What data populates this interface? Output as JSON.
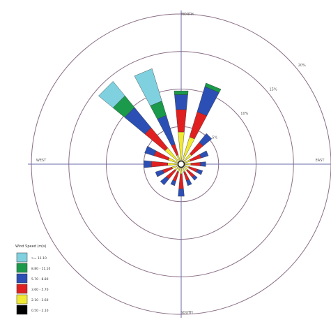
{
  "chart_data": {
    "type": "wind-rose",
    "title": "",
    "direction_labels": {
      "north": "NORTH",
      "south": "SOUTH",
      "east": "EAST",
      "west": "WEST"
    },
    "radial_scale": {
      "unit": "%",
      "rings": [
        5,
        10,
        15,
        20
      ],
      "ring_labels": [
        "5%",
        "10%",
        "15%",
        "20%"
      ],
      "max": 20
    },
    "legend": {
      "title": "Wind Speed (m/s)",
      "placement": "bottom-left",
      "classes": [
        {
          "label": ">= 11.10",
          "color": "#7fd1df"
        },
        {
          "label": "8.80 - 11.10",
          "color": "#1a9a4a"
        },
        {
          "label": "5.70 - 8.80",
          "color": "#2b4fb5"
        },
        {
          "label": "3.60 - 5.70",
          "color": "#e02020"
        },
        {
          "label": "2.10 - 3.60",
          "color": "#f2ea32"
        },
        {
          "label": "0.50 - 2.10",
          "color": "#000000"
        }
      ]
    },
    "directions_deg": [
      0,
      22.5,
      45,
      67.5,
      90,
      112.5,
      135,
      157.5,
      180,
      202.5,
      225,
      247.5,
      270,
      292.5,
      315,
      337.5
    ],
    "series": [
      {
        "name": "0.50 - 2.10",
        "values": [
          0.3,
          0.3,
          0.3,
          0.3,
          0.3,
          0.3,
          0.3,
          0.3,
          0.3,
          0.3,
          0.3,
          0.3,
          0.3,
          0.3,
          0.3,
          0.3
        ]
      },
      {
        "name": "2.10 - 3.60",
        "values": [
          4.0,
          3.5,
          1.5,
          1.0,
          1.0,
          0.8,
          0.8,
          0.8,
          1.0,
          0.8,
          0.8,
          1.0,
          1.5,
          1.5,
          2.5,
          1.0
        ]
      },
      {
        "name": "3.60 - 5.70",
        "values": [
          3.0,
          3.5,
          2.0,
          1.5,
          1.3,
          1.2,
          1.2,
          1.2,
          2.0,
          1.3,
          1.5,
          1.3,
          2.2,
          2.0,
          3.5,
          1.5
        ]
      },
      {
        "name": "5.70 - 8.80",
        "values": [
          2.0,
          3.5,
          1.5,
          1.0,
          0.7,
          0.7,
          0.5,
          0.7,
          1.0,
          0.6,
          1.0,
          1.0,
          1.0,
          1.3,
          3.5,
          4.0
        ]
      },
      {
        "name": "8.80 - 11.10",
        "values": [
          0.5,
          0.5,
          0.0,
          0.0,
          0.0,
          0.0,
          0.0,
          0.0,
          0.0,
          0.0,
          0.0,
          0.0,
          0.0,
          0.0,
          2.0,
          2.0
        ]
      },
      {
        "name": ">= 11.10",
        "values": [
          0.0,
          0.0,
          0.0,
          0.0,
          0.0,
          0.0,
          0.0,
          0.0,
          0.0,
          0.0,
          0.0,
          0.0,
          0.0,
          0.0,
          2.5,
          4.5
        ]
      }
    ],
    "calm_marker": true,
    "grid": true
  }
}
